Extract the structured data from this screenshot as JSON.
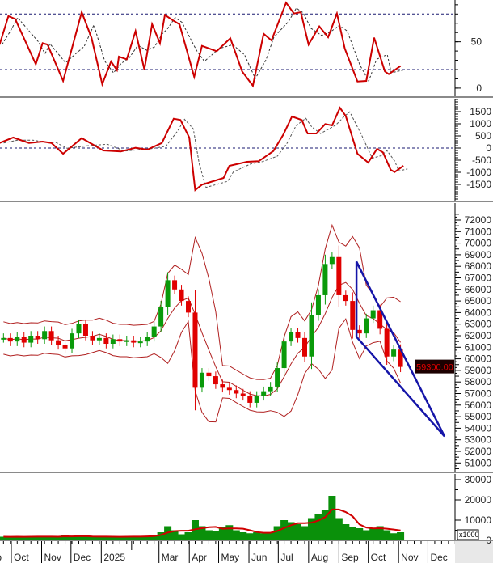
{
  "chart_data": [
    {
      "panel": "rsi",
      "type": "line",
      "yticks": [
        "0",
        "50"
      ],
      "ytick_values": [
        0,
        50
      ],
      "reference_lines": [
        20,
        80
      ],
      "color": "#cc0000",
      "points": [
        [
          "2024-09-19",
          47
        ],
        [
          "2024-09-28",
          77.6
        ],
        [
          "2024-10-05",
          74.7
        ],
        [
          "2024-10-26",
          25.8
        ],
        [
          "2024-11-02",
          48.5
        ],
        [
          "2024-11-07",
          47
        ],
        [
          "2024-11-23",
          7.8
        ],
        [
          "2024-12-12",
          82
        ],
        [
          "2024-12-22",
          54.4
        ],
        [
          "2025-01-02",
          4.3
        ],
        [
          "2025-01-11",
          28.7
        ],
        [
          "2025-01-17",
          19.4
        ],
        [
          "2025-01-19",
          34
        ],
        [
          "2025-01-27",
          31
        ],
        [
          "2025-02-05",
          61.6
        ],
        [
          "2025-02-14",
          20
        ],
        [
          "2025-02-22",
          68.9
        ],
        [
          "2025-03-02",
          48.5
        ],
        [
          "2025-03-07",
          79
        ],
        [
          "2025-03-15",
          73.3
        ],
        [
          "2025-03-22",
          68.9
        ],
        [
          "2025-04-06",
          12.1
        ],
        [
          "2025-04-14",
          45.6
        ],
        [
          "2025-04-29",
          39.8
        ],
        [
          "2025-05-13",
          53.8
        ],
        [
          "2025-05-25",
          18
        ],
        [
          "2025-06-05",
          2.5
        ],
        [
          "2025-06-16",
          58.7
        ],
        [
          "2025-06-24",
          51.4
        ],
        [
          "2025-07-09",
          92.2
        ],
        [
          "2025-07-17",
          80.5
        ],
        [
          "2025-07-24",
          82
        ],
        [
          "2025-08-01",
          47
        ],
        [
          "2025-08-12",
          66.6
        ],
        [
          "2025-08-21",
          54.9
        ],
        [
          "2025-08-30",
          80.5
        ],
        [
          "2025-09-07",
          42.7
        ],
        [
          "2025-09-20",
          7.2
        ],
        [
          "2025-09-29",
          7.8
        ],
        [
          "2025-10-07",
          54.4
        ],
        [
          "2025-10-18",
          18
        ],
        [
          "2025-10-22",
          15
        ],
        [
          "2025-11-03",
          23.8
        ]
      ]
    },
    {
      "panel": "macd",
      "type": "line",
      "yticks": [
        "1500",
        "1000",
        "500",
        "0",
        "-500",
        "-1000",
        "-1500"
      ],
      "ytick_values": [
        1500,
        1000,
        500,
        0,
        -500,
        -1000,
        -1500
      ],
      "reference_lines": [
        0
      ],
      "color": "#cc0000",
      "points": [
        [
          "2024-09-19",
          211
        ],
        [
          "2024-10-03",
          433
        ],
        [
          "2024-10-19",
          211
        ],
        [
          "2024-11-02",
          267
        ],
        [
          "2024-11-11",
          211
        ],
        [
          "2024-11-23",
          -233
        ],
        [
          "2024-12-12",
          411
        ],
        [
          "2025-01-03",
          -100
        ],
        [
          "2025-01-21",
          -144
        ],
        [
          "2025-02-05",
          11
        ],
        [
          "2025-02-17",
          -67
        ],
        [
          "2025-03-04",
          211
        ],
        [
          "2025-03-16",
          1211
        ],
        [
          "2025-03-23",
          1156
        ],
        [
          "2025-04-01",
          433
        ],
        [
          "2025-04-07",
          -1733
        ],
        [
          "2025-04-14",
          -1511
        ],
        [
          "2025-05-06",
          -1233
        ],
        [
          "2025-05-12",
          -733
        ],
        [
          "2025-05-30",
          -567
        ],
        [
          "2025-06-11",
          -544
        ],
        [
          "2025-06-26",
          -122
        ],
        [
          "2025-07-06",
          544
        ],
        [
          "2025-07-15",
          1300
        ],
        [
          "2025-07-25",
          1156
        ],
        [
          "2025-07-31",
          600
        ],
        [
          "2025-08-09",
          600
        ],
        [
          "2025-08-18",
          989
        ],
        [
          "2025-08-25",
          933
        ],
        [
          "2025-09-02",
          1656
        ],
        [
          "2025-09-08",
          1322
        ],
        [
          "2025-09-20",
          -233
        ],
        [
          "2025-10-01",
          -600
        ],
        [
          "2025-10-10",
          -33
        ],
        [
          "2025-10-16",
          -178
        ],
        [
          "2025-10-24",
          -900
        ],
        [
          "2025-10-28",
          -989
        ],
        [
          "2025-11-06",
          -733
        ]
      ]
    },
    {
      "panel": "price",
      "type": "candlestick",
      "yticks": [
        "72000",
        "71000",
        "70000",
        "69000",
        "68000",
        "67000",
        "66000",
        "65000",
        "64000",
        "63000",
        "62000",
        "61000",
        "60000",
        "59000",
        "58000",
        "57000",
        "56000",
        "55000",
        "54000",
        "53000",
        "52000",
        "51000"
      ],
      "ytick_values": [
        72000,
        71000,
        70000,
        69000,
        68000,
        67000,
        66000,
        65000,
        64000,
        63000,
        62000,
        61000,
        60000,
        59000,
        58000,
        57000,
        56000,
        55000,
        54000,
        53000,
        52000,
        51000
      ],
      "last_price_label": "59300.00",
      "up_color": "#0a9a0a",
      "down_color": "#e00000",
      "band_color": "#b02020",
      "closes": [
        [
          "2024-09-23",
          61800
        ],
        [
          "2024-09-30",
          61500
        ],
        [
          "2024-10-07",
          61900
        ],
        [
          "2024-10-14",
          61400
        ],
        [
          "2024-10-21",
          62000
        ],
        [
          "2024-10-28",
          61700
        ],
        [
          "2024-11-04",
          62400
        ],
        [
          "2024-11-11",
          61600
        ],
        [
          "2024-11-18",
          61200
        ],
        [
          "2024-11-25",
          60900
        ],
        [
          "2024-12-02",
          62200
        ],
        [
          "2024-12-09",
          63000
        ],
        [
          "2024-12-16",
          62000
        ],
        [
          "2024-12-23",
          61600
        ],
        [
          "2024-12-30",
          61800
        ],
        [
          "2025-01-06",
          61300
        ],
        [
          "2025-01-13",
          61700
        ],
        [
          "2025-01-20",
          61500
        ],
        [
          "2025-01-27",
          61600
        ],
        [
          "2025-02-03",
          61400
        ],
        [
          "2025-02-10",
          61500
        ],
        [
          "2025-02-17",
          61900
        ],
        [
          "2025-02-24",
          62800
        ],
        [
          "2025-03-03",
          64500
        ],
        [
          "2025-03-10",
          66800
        ],
        [
          "2025-03-17",
          66000
        ],
        [
          "2025-03-24",
          65000
        ],
        [
          "2025-03-31",
          64000
        ],
        [
          "2025-04-07",
          57500
        ],
        [
          "2025-04-14",
          58800
        ],
        [
          "2025-04-21",
          58500
        ],
        [
          "2025-04-28",
          57800
        ],
        [
          "2025-05-05",
          57500
        ],
        [
          "2025-05-12",
          57300
        ],
        [
          "2025-05-19",
          57000
        ],
        [
          "2025-05-26",
          56800
        ],
        [
          "2025-06-02",
          56200
        ],
        [
          "2025-06-09",
          56800
        ],
        [
          "2025-06-16",
          57200
        ],
        [
          "2025-06-23",
          57600
        ],
        [
          "2025-06-30",
          59200
        ],
        [
          "2025-07-07",
          61500
        ],
        [
          "2025-07-14",
          62300
        ],
        [
          "2025-07-21",
          61800
        ],
        [
          "2025-07-28",
          60200
        ],
        [
          "2025-08-04",
          63800
        ],
        [
          "2025-08-11",
          65500
        ],
        [
          "2025-08-18",
          68200
        ],
        [
          "2025-08-25",
          68800
        ],
        [
          "2025-09-01",
          65500
        ],
        [
          "2025-09-08",
          65000
        ],
        [
          "2025-09-15",
          62500
        ],
        [
          "2025-09-22",
          62200
        ],
        [
          "2025-09-29",
          63500
        ],
        [
          "2025-10-06",
          64200
        ],
        [
          "2025-10-13",
          62600
        ],
        [
          "2025-10-20",
          60200
        ],
        [
          "2025-10-27",
          60800
        ],
        [
          "2025-11-03",
          59300
        ]
      ],
      "annotation_triangle": {
        "color": "#1515a8",
        "vertices": [
          [
            "2025-09-19",
            68400
          ],
          [
            "2025-09-19",
            61900
          ],
          [
            "2025-12-18",
            53300
          ]
        ]
      }
    },
    {
      "panel": "volume",
      "type": "bar",
      "yticks": [
        "30000",
        "20000",
        "10000",
        "0"
      ],
      "ytick_values": [
        30000,
        20000,
        10000,
        0
      ],
      "unit_label": "x1000",
      "bar_color": "#0a900a",
      "ma_color": "#d00000",
      "values": [
        1800,
        1700,
        1900,
        1600,
        2000,
        1800,
        1900,
        1700,
        1800,
        2600,
        1800,
        1900,
        2000,
        1800,
        1700,
        1800,
        1900,
        1700,
        1800,
        1900,
        2000,
        2100,
        2400,
        4000,
        7000,
        5000,
        3000,
        4000,
        10000,
        7000,
        5000,
        4500,
        6500,
        7500,
        5000,
        4000,
        3500,
        4000,
        3500,
        4000,
        7000,
        10000,
        9000,
        8000,
        7000,
        11000,
        13000,
        15000,
        22000,
        11000,
        8000,
        6500,
        6000,
        5000,
        6000,
        7000,
        5000,
        3500,
        4000
      ]
    }
  ],
  "x_axis": {
    "months": [
      [
        "2024-09-01",
        "Sep"
      ],
      [
        "2024-10-01",
        "Oct"
      ],
      [
        "2024-11-01",
        "Nov"
      ],
      [
        "2024-12-01",
        "Dec"
      ],
      [
        "2025-01-01",
        "2025"
      ],
      [
        "2025-03-01",
        "Mar"
      ],
      [
        "2025-04-01",
        "Apr"
      ],
      [
        "2025-05-01",
        "May"
      ],
      [
        "2025-06-01",
        "Jun"
      ],
      [
        "2025-07-01",
        "Jul"
      ],
      [
        "2025-08-01",
        "Aug"
      ],
      [
        "2025-09-01",
        "Sep"
      ],
      [
        "2025-10-01",
        "Oct"
      ],
      [
        "2025-11-01",
        "Nov"
      ],
      [
        "2025-12-01",
        "Dec"
      ]
    ],
    "minor_tick_dates": [
      "2025-02-01"
    ]
  }
}
